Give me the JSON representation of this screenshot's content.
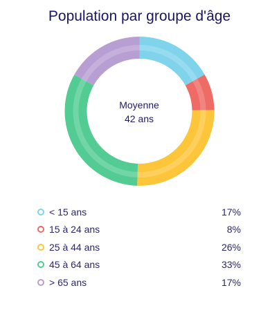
{
  "chart_data": {
    "type": "pie",
    "title": "Population par groupe d'âge",
    "center_label": {
      "line1": "Moyenne",
      "line2": "42 ans"
    },
    "categories": [
      "< 15 ans",
      "15 à 24 ans",
      "25 à 44 ans",
      "45 à 64 ans",
      "> 65 ans"
    ],
    "values": [
      17,
      8,
      26,
      33,
      17
    ],
    "value_labels": [
      "17%",
      "8%",
      "26%",
      "33%",
      "17%"
    ],
    "colors": [
      "#7fd4ec",
      "#ee6b66",
      "#fdc53a",
      "#52cc93",
      "#b79fd4"
    ],
    "legend_position": "bottom"
  }
}
